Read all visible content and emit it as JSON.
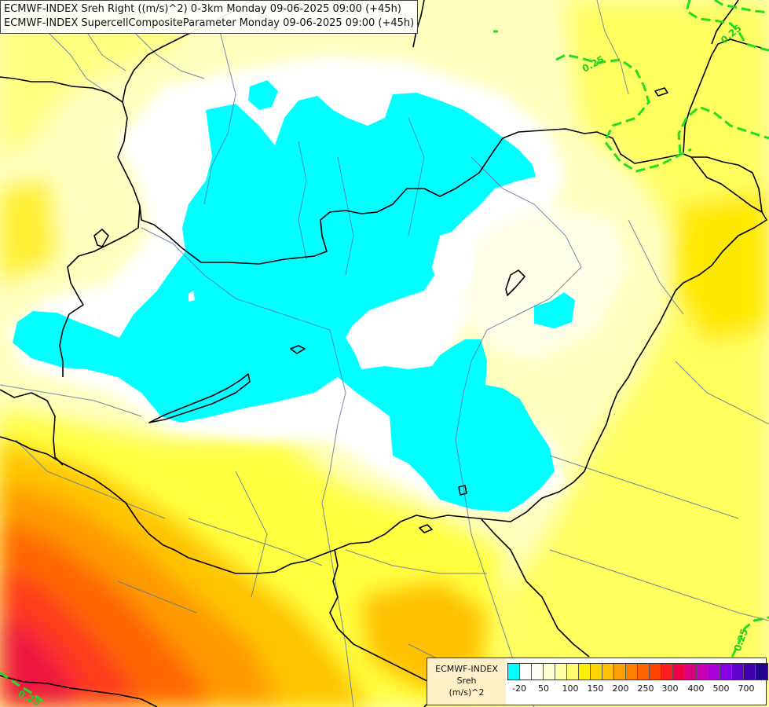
{
  "titles": [
    "ECMWF-INDEX Sreh Right ((m/s)^2) 0-3km Monday 09-06-2025 09:00 (+45h)",
    "ECMWF-INDEX SupercellCompositeParameter Monday 09-06-2025 09:00 (+45h)"
  ],
  "contour_labels": [
    "0.25",
    "0.25",
    "0.25",
    "0.25"
  ],
  "legend": {
    "caption_lines": [
      "ECMWF-INDEX",
      "Sreh",
      "(m/s)^2"
    ],
    "swatch_colors": [
      "#00ffff",
      "#ffffff",
      "#fffff0",
      "#ffffd0",
      "#ffffa8",
      "#ffff70",
      "#ffee00",
      "#ffd400",
      "#ffbe00",
      "#ffa000",
      "#ff8000",
      "#ff6400",
      "#ff4400",
      "#ff1e1e",
      "#ee0044",
      "#d8007a",
      "#c800b4",
      "#aa00d8",
      "#8a00e6",
      "#6200d0",
      "#4000b0",
      "#20008c"
    ],
    "tick_labels": [
      "-20",
      "50",
      "100",
      "150",
      "200",
      "250",
      "300",
      "400",
      "500",
      "700"
    ]
  },
  "colors": {
    "cyan_region": "#00ffff",
    "border": "#000000",
    "river": "#5a76a8",
    "contour": "#22dd22"
  }
}
